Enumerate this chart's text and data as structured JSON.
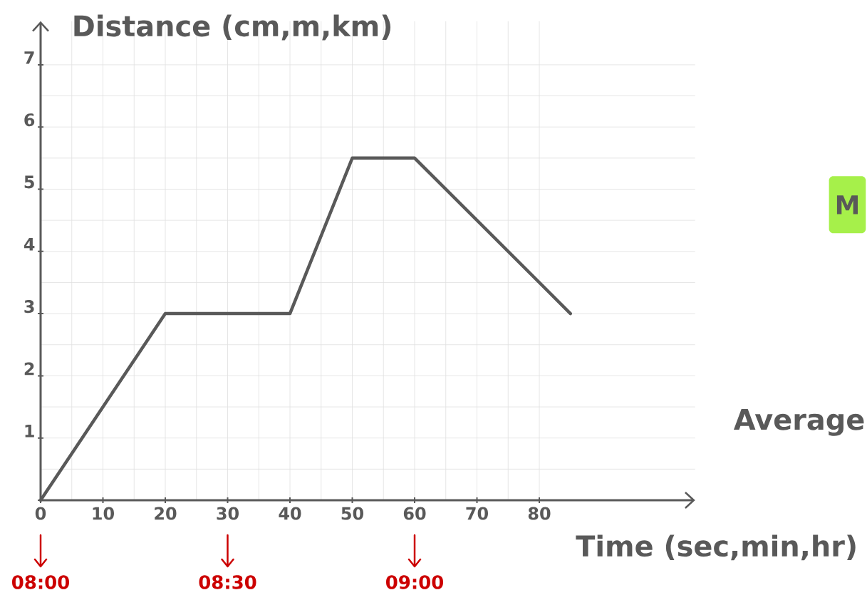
{
  "chart_data": {
    "type": "line",
    "xlabel": "Time (sec,min,hr)",
    "ylabel": "Distance (cm,m,km)",
    "x": [
      0,
      20,
      40,
      50,
      60,
      85
    ],
    "series": [
      {
        "color": "#595959",
        "values": [
          0,
          3,
          3,
          5.5,
          5.5,
          3
        ]
      }
    ],
    "xlim": [
      0,
      105
    ],
    "ylim": [
      0,
      7.7
    ],
    "xticks": [
      0,
      10,
      20,
      30,
      40,
      50,
      60,
      70,
      80
    ],
    "yticks": [
      {
        "value": 0,
        "label": null
      },
      1,
      2,
      3,
      4,
      5,
      6,
      7
    ],
    "grid": true,
    "marker": "none",
    "line_style": "solid",
    "annotations": [
      "08:00",
      "08:30",
      "09:00",
      "M",
      "Average"
    ]
  }
}
